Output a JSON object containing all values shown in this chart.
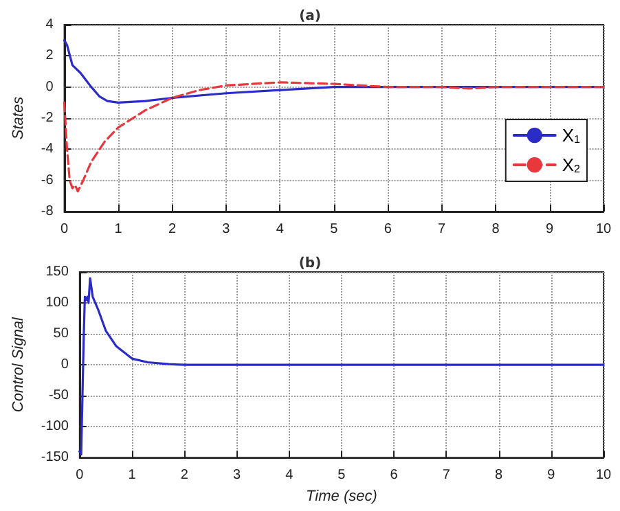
{
  "chart_data": [
    {
      "type": "line",
      "title": "(a)",
      "ylabel": "States",
      "xlim": [
        0,
        10
      ],
      "xticks": [
        0,
        1,
        2,
        3,
        4,
        5,
        6,
        7,
        8,
        9,
        10
      ],
      "ylim": [
        -8,
        4
      ],
      "yticks": [
        -8,
        -6,
        -4,
        -2,
        0,
        2,
        4
      ],
      "grid": true,
      "legend": "bottom right",
      "marker": "none",
      "series": [
        {
          "name": "X$_{1}$",
          "color": "#2b2bc8",
          "line_style": "solid",
          "x": [
            0,
            0.05,
            0.15,
            0.3,
            0.5,
            0.65,
            0.8,
            1,
            1.5,
            2,
            3,
            4,
            5,
            6,
            7,
            8,
            10
          ],
          "values": [
            3,
            2.7,
            1.4,
            0.9,
            0,
            -0.6,
            -0.9,
            -1,
            -0.9,
            -0.7,
            -0.4,
            -0.2,
            0,
            0,
            0,
            0,
            0
          ]
        },
        {
          "name": "X$_{2}$",
          "color": "#e8383d",
          "line_style": "dashed",
          "x": [
            0,
            0.05,
            0.1,
            0.15,
            0.2,
            0.25,
            0.35,
            0.5,
            0.75,
            1,
            1.5,
            2,
            2.5,
            3,
            4,
            5,
            6,
            7,
            7.5,
            8,
            10
          ],
          "values": [
            -1,
            -4,
            -6,
            -6.5,
            -6.3,
            -6.7,
            -6,
            -4.8,
            -3.5,
            -2.6,
            -1.5,
            -0.7,
            -0.2,
            0.1,
            0.3,
            0.2,
            0,
            0,
            -0.1,
            0,
            0
          ]
        }
      ]
    },
    {
      "type": "line",
      "title": "(b)",
      "ylabel": "Control Signal",
      "xlabel": "Time (sec)",
      "xlim": [
        0,
        10
      ],
      "xticks": [
        0,
        1,
        2,
        3,
        4,
        5,
        6,
        7,
        8,
        9,
        10
      ],
      "ylim": [
        -150,
        150
      ],
      "yticks": [
        -150,
        -100,
        -50,
        0,
        50,
        100,
        150
      ],
      "grid": true,
      "marker": "none",
      "series": [
        {
          "color": "#2b2bc8",
          "line_style": "solid",
          "x": [
            0,
            0.03,
            0.08,
            0.1,
            0.13,
            0.15,
            0.17,
            0.2,
            0.25,
            0.35,
            0.5,
            0.7,
            1,
            1.3,
            1.7,
            2,
            10
          ],
          "values": [
            -140,
            -145,
            50,
            110,
            105,
            110,
            100,
            140,
            110,
            90,
            55,
            30,
            10,
            4,
            1,
            0,
            0
          ]
        }
      ]
    }
  ]
}
